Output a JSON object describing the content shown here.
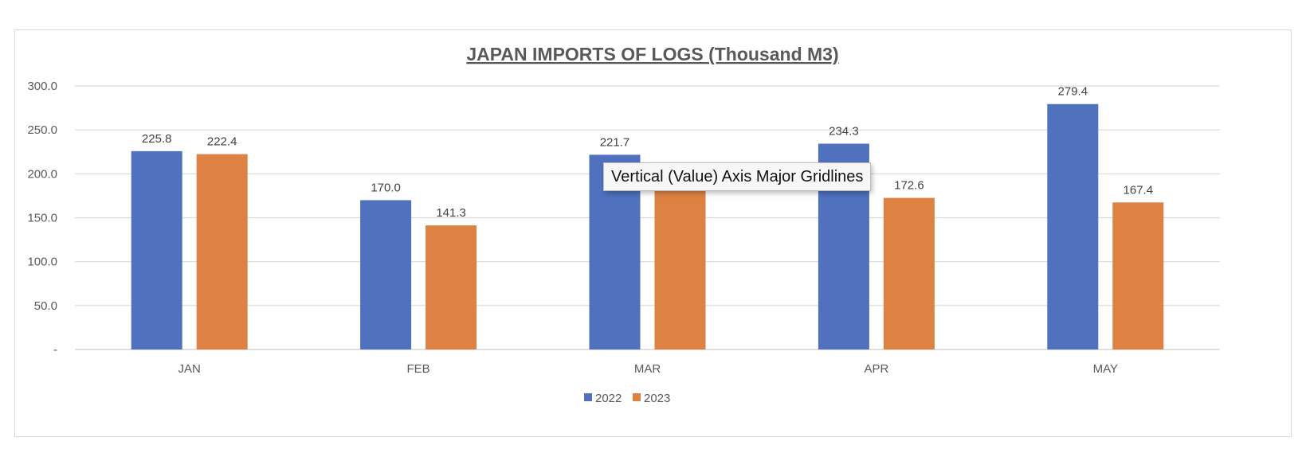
{
  "chart_data": {
    "type": "bar",
    "title": "JAPAN IMPORTS OF LOGS (Thousand M3)",
    "categories": [
      "JAN",
      "FEB",
      "MAR",
      "APR",
      "MAY"
    ],
    "series": [
      {
        "name": "2022",
        "color": "#4f71be",
        "values": [
          225.8,
          170.0,
          221.7,
          234.3,
          279.4
        ],
        "labels": [
          "225.8",
          "170.0",
          "221.7",
          "234.3",
          "279.4"
        ]
      },
      {
        "name": "2023",
        "color": "#de8244",
        "values": [
          222.4,
          141.3,
          185.0,
          172.6,
          167.4
        ],
        "labels": [
          "222.4",
          "141.3",
          "",
          "172.6",
          "167.4"
        ]
      }
    ],
    "ylim": [
      0,
      300
    ],
    "yticks": [
      0,
      50,
      100,
      150,
      200,
      250,
      300
    ],
    "ytick_labels": [
      "-",
      "50.0",
      "100.0",
      "150.0",
      "200.0",
      "250.0",
      "300.0"
    ],
    "grid": true,
    "legend": "bottom-center",
    "gridline_color": "#d9d9d9"
  },
  "tooltip": {
    "text": "Vertical (Value) Axis Major Gridlines"
  }
}
